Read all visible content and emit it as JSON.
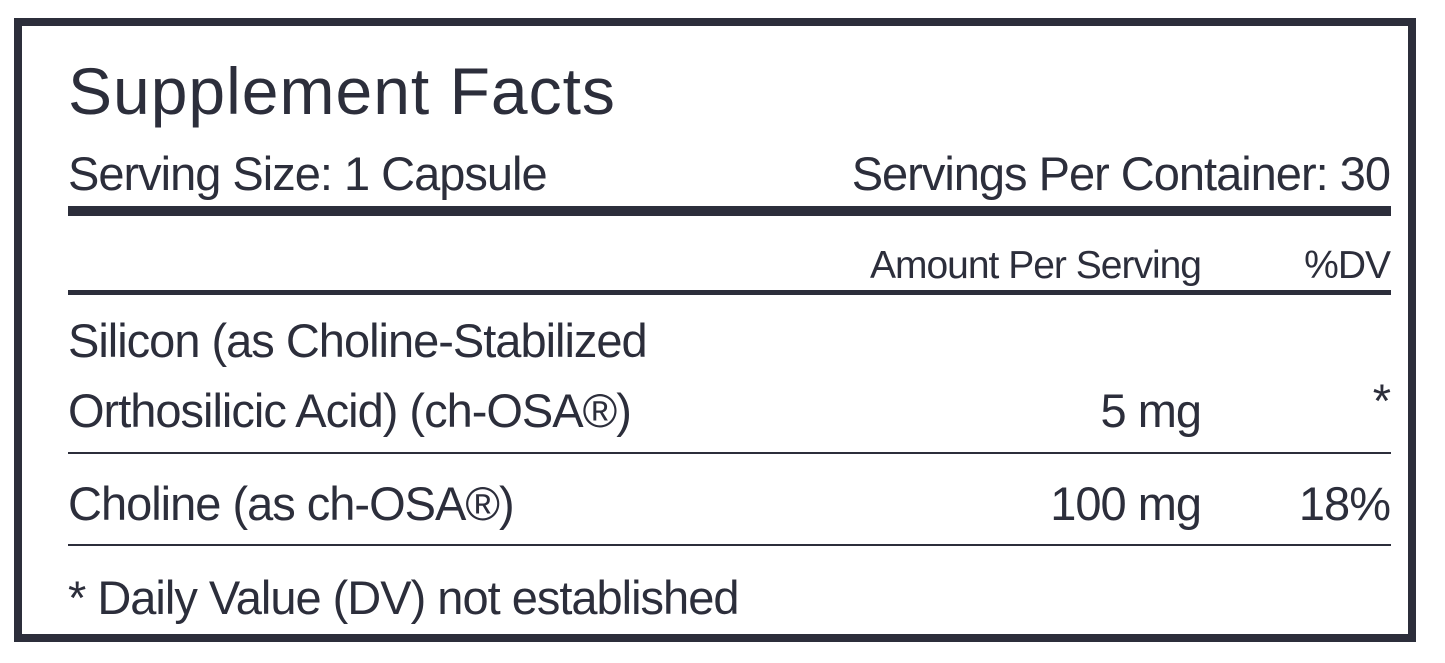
{
  "header": {
    "title": "Supplement Facts",
    "serving_size": "Serving Size: 1 Capsule",
    "servings_per_container": "Servings Per Container: 30"
  },
  "table": {
    "columns": [
      "Amount Per Serving",
      "%DV"
    ],
    "rows": [
      [
        "Silicon (as Choline-Stabilized Orthosilicic Acid) (ch-OSA®)",
        "5 mg",
        "*"
      ],
      [
        "Choline (as ch-OSA®)",
        "100 mg",
        "18%"
      ]
    ]
  },
  "footnote": "* Daily Value (DV) not established"
}
